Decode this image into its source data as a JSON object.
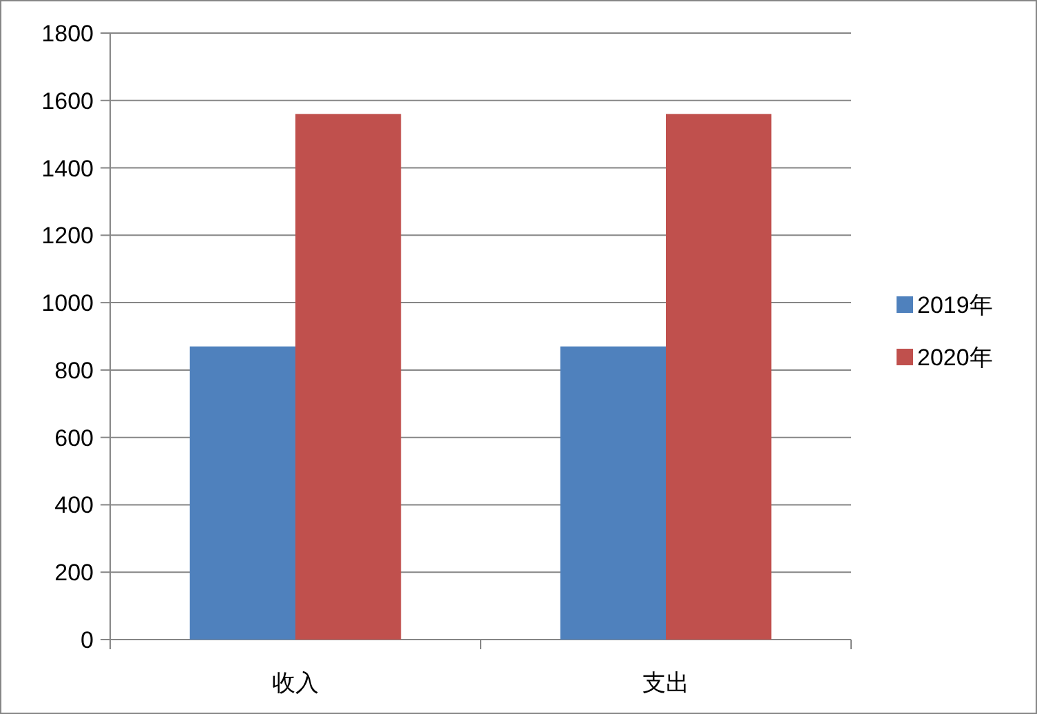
{
  "chart_data": {
    "type": "bar",
    "categories": [
      "收入",
      "支出"
    ],
    "series": [
      {
        "name": "2019年",
        "color": "#4f81bd",
        "values": [
          870,
          870
        ]
      },
      {
        "name": "2020年",
        "color": "#c0504d",
        "values": [
          1560,
          1560
        ]
      }
    ],
    "ylim": [
      0,
      1800
    ],
    "yticks": [
      0,
      200,
      400,
      600,
      800,
      1000,
      1200,
      1400,
      1600,
      1800
    ],
    "grid": "y",
    "legend": "right"
  }
}
